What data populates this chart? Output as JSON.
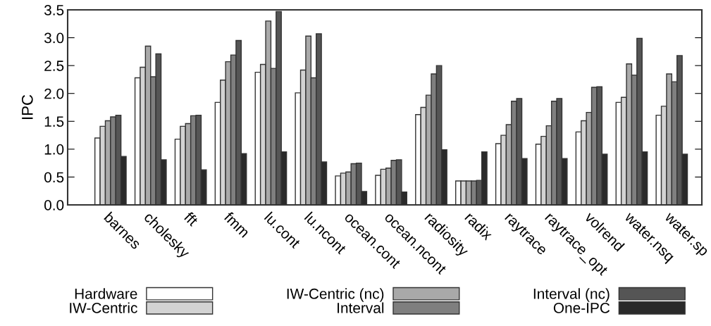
{
  "chart_data": {
    "type": "bar",
    "ylabel": "IPC",
    "categories": [
      "barnes",
      "cholesky",
      "fft",
      "fmm",
      "lu.cont",
      "lu.ncont",
      "ocean.cont",
      "ocean.ncont",
      "radiosity",
      "radix",
      "raytrace",
      "raytrace_opt",
      "volrend",
      "water.nsq",
      "water.sp"
    ],
    "series": [
      {
        "name": "Hardware",
        "color": "#ffffff",
        "values": [
          1.2,
          2.28,
          1.18,
          1.84,
          2.38,
          2.01,
          0.52,
          0.53,
          1.62,
          0.43,
          1.1,
          1.09,
          1.31,
          1.84,
          1.61
        ]
      },
      {
        "name": "IW-Centric",
        "color": "#d3d3d3",
        "values": [
          1.41,
          2.47,
          1.41,
          2.24,
          2.52,
          2.42,
          0.57,
          0.64,
          1.75,
          0.43,
          1.25,
          1.23,
          1.51,
          1.93,
          1.77
        ]
      },
      {
        "name": "IW-Centric (nc)",
        "color": "#a9a9a9",
        "values": [
          1.51,
          2.85,
          1.46,
          2.57,
          3.3,
          3.03,
          0.59,
          0.66,
          1.97,
          0.43,
          1.44,
          1.42,
          1.66,
          2.53,
          2.35
        ]
      },
      {
        "name": "Interval",
        "color": "#7f7f7f",
        "values": [
          1.58,
          2.3,
          1.6,
          2.69,
          2.45,
          2.28,
          0.74,
          0.8,
          2.35,
          0.43,
          1.86,
          1.86,
          2.11,
          2.33,
          2.21
        ]
      },
      {
        "name": "Interval (nc)",
        "color": "#555555",
        "values": [
          1.61,
          2.71,
          1.61,
          2.95,
          3.47,
          3.07,
          0.75,
          0.81,
          2.5,
          0.44,
          1.91,
          1.91,
          2.12,
          2.99,
          2.68
        ]
      },
      {
        "name": "One-IPC",
        "color": "#2a2a2a",
        "values": [
          0.87,
          0.81,
          0.63,
          0.92,
          0.95,
          0.77,
          0.24,
          0.23,
          0.99,
          0.95,
          0.83,
          0.83,
          0.91,
          0.95,
          0.91
        ]
      }
    ],
    "ylim": [
      0,
      3.5
    ],
    "yticks": [
      {
        "value": 0,
        "label": "0.0"
      },
      {
        "value": 0.5,
        "label": "0.5"
      },
      {
        "value": 1,
        "label": "1.0"
      },
      {
        "value": 1.5,
        "label": "1.5"
      },
      {
        "value": 2,
        "label": "2.0"
      },
      {
        "value": 2.5,
        "label": "2.5"
      },
      {
        "value": 3,
        "label": "3.0"
      },
      {
        "value": 3.5,
        "label": "3.5"
      }
    ],
    "legend": "bottom",
    "grid": false
  }
}
